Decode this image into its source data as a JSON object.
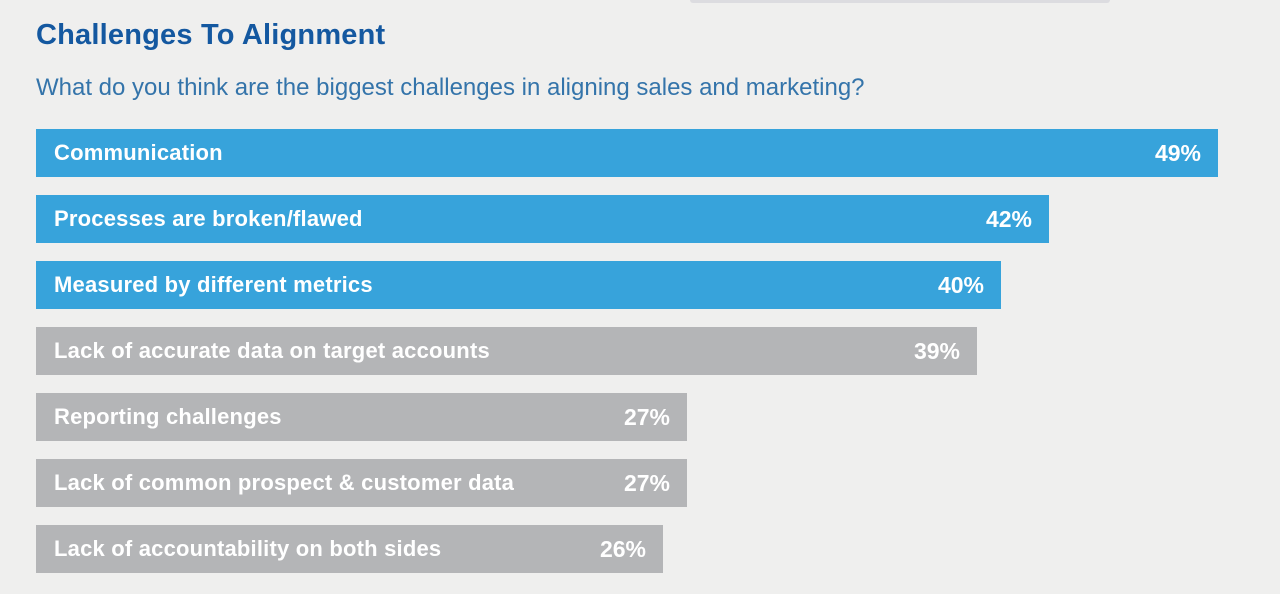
{
  "page": {
    "title": "Challenges To Alignment",
    "subtitle": "What do you think are the biggest challenges in aligning sales and marketing?"
  },
  "chart_data": {
    "type": "bar",
    "orientation": "horizontal",
    "title": "Challenges To Alignment",
    "subtitle": "What do you think are the biggest challenges in aligning sales and marketing?",
    "categories": [
      "Communication",
      "Processes are broken/flawed",
      "Measured by different metrics",
      "Lack of accurate data on target accounts",
      "Reporting challenges",
      "Lack of common prospect & customer data",
      "Lack of accountability on both sides"
    ],
    "values": [
      49,
      42,
      40,
      39,
      27,
      27,
      26
    ],
    "value_labels": [
      "49%",
      "42%",
      "40%",
      "39%",
      "27%",
      "27%",
      "26%"
    ],
    "xlim": [
      0,
      49
    ],
    "grid": false,
    "legend": false,
    "bar_colors": [
      "#37a3db",
      "#37a3db",
      "#37a3db",
      "#b4b5b7",
      "#b4b5b7",
      "#b4b5b7",
      "#b4b5b7"
    ],
    "colors": {
      "highlight_blue": "#37a3db",
      "muted_gray": "#b4b5b7",
      "title_text": "#1458a0",
      "subtitle_text": "#3474aa",
      "bar_text": "#ffffff",
      "background": "#efefee"
    }
  }
}
